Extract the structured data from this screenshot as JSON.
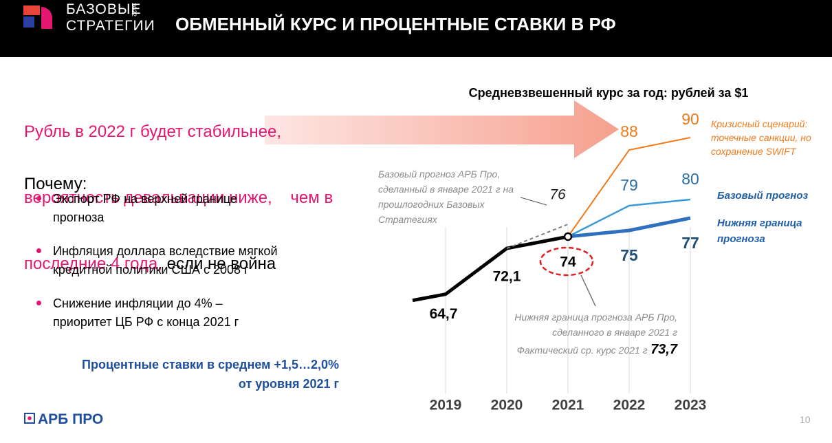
{
  "header": {
    "logo_line1": "БАЗОВЫЕ",
    "logo_line2": "СТРАТЕГИИ",
    "logo_year": "2022",
    "title": "ОБМЕННЫЙ КУРС И ПРОЦЕНТНЫЕ СТАВКИ В РФ"
  },
  "lead": {
    "lines": [
      "Рубль в 2022 г будет стабильнее,",
      "вероятность девальвации ниже,    чем в",
      "последние 4 года,"
    ],
    "tail": "если не война"
  },
  "why": {
    "title": "Почему:",
    "bullets": [
      [
        "Экспорт РФ на верхней границе",
        "прогноза"
      ],
      [
        "Инфляция доллара вследствие мягкой",
        "кредитной политики США с 2008 г"
      ],
      [
        "Снижение инфляции до 4% –",
        "приоритет ЦБ РФ с конца 2021 г"
      ]
    ]
  },
  "rates": [
    "Процентные ставки в среднем +1,5…2,0%",
    "от уровня 2021 г"
  ],
  "footer": {
    "brand": "АРБ ПРО",
    "page": "10"
  },
  "chart_data": {
    "type": "line",
    "title": "Средневзвешенный курс за год: рублей за $1",
    "categories": [
      "2019",
      "2020",
      "2021",
      "2022",
      "2023"
    ],
    "ylim": [
      50,
      100
    ],
    "grid": true,
    "series": [
      {
        "color": "#000000",
        "values": [
          64.7,
          72.1,
          74,
          null,
          null
        ],
        "value_labels": [
          "64,7",
          "72,1",
          "74",
          null,
          null
        ]
      },
      {
        "color": "#7f7f7f",
        "dash": true,
        "values": [
          null,
          null,
          76,
          null,
          null
        ]
      },
      {
        "name": "Кризисный сценарий: точечные санкции, но сохранение SWIFT",
        "color": "#f07a1a",
        "values": [
          null,
          null,
          null,
          88,
          90
        ]
      },
      {
        "name": "Базовый прогноз",
        "color": "#3a9ad9",
        "values": [
          null,
          null,
          null,
          79,
          80
        ]
      },
      {
        "name": "Нижняя граница прогноза",
        "color": "#2e6fc0",
        "values": [
          null,
          null,
          null,
          75,
          77
        ]
      }
    ],
    "annotations": {
      "prior_forecast": "Базовый прогноз АРБ Про, сделанный в январе 2021 г на прошлогодних Базовых Стратегиях",
      "lower_bound": "Нижняя граница прогноза АРБ Про, сделанного в январе 2021 г",
      "actual_label": "Фактический ср. курс 2021 г",
      "actual_value": "73,7"
    }
  }
}
